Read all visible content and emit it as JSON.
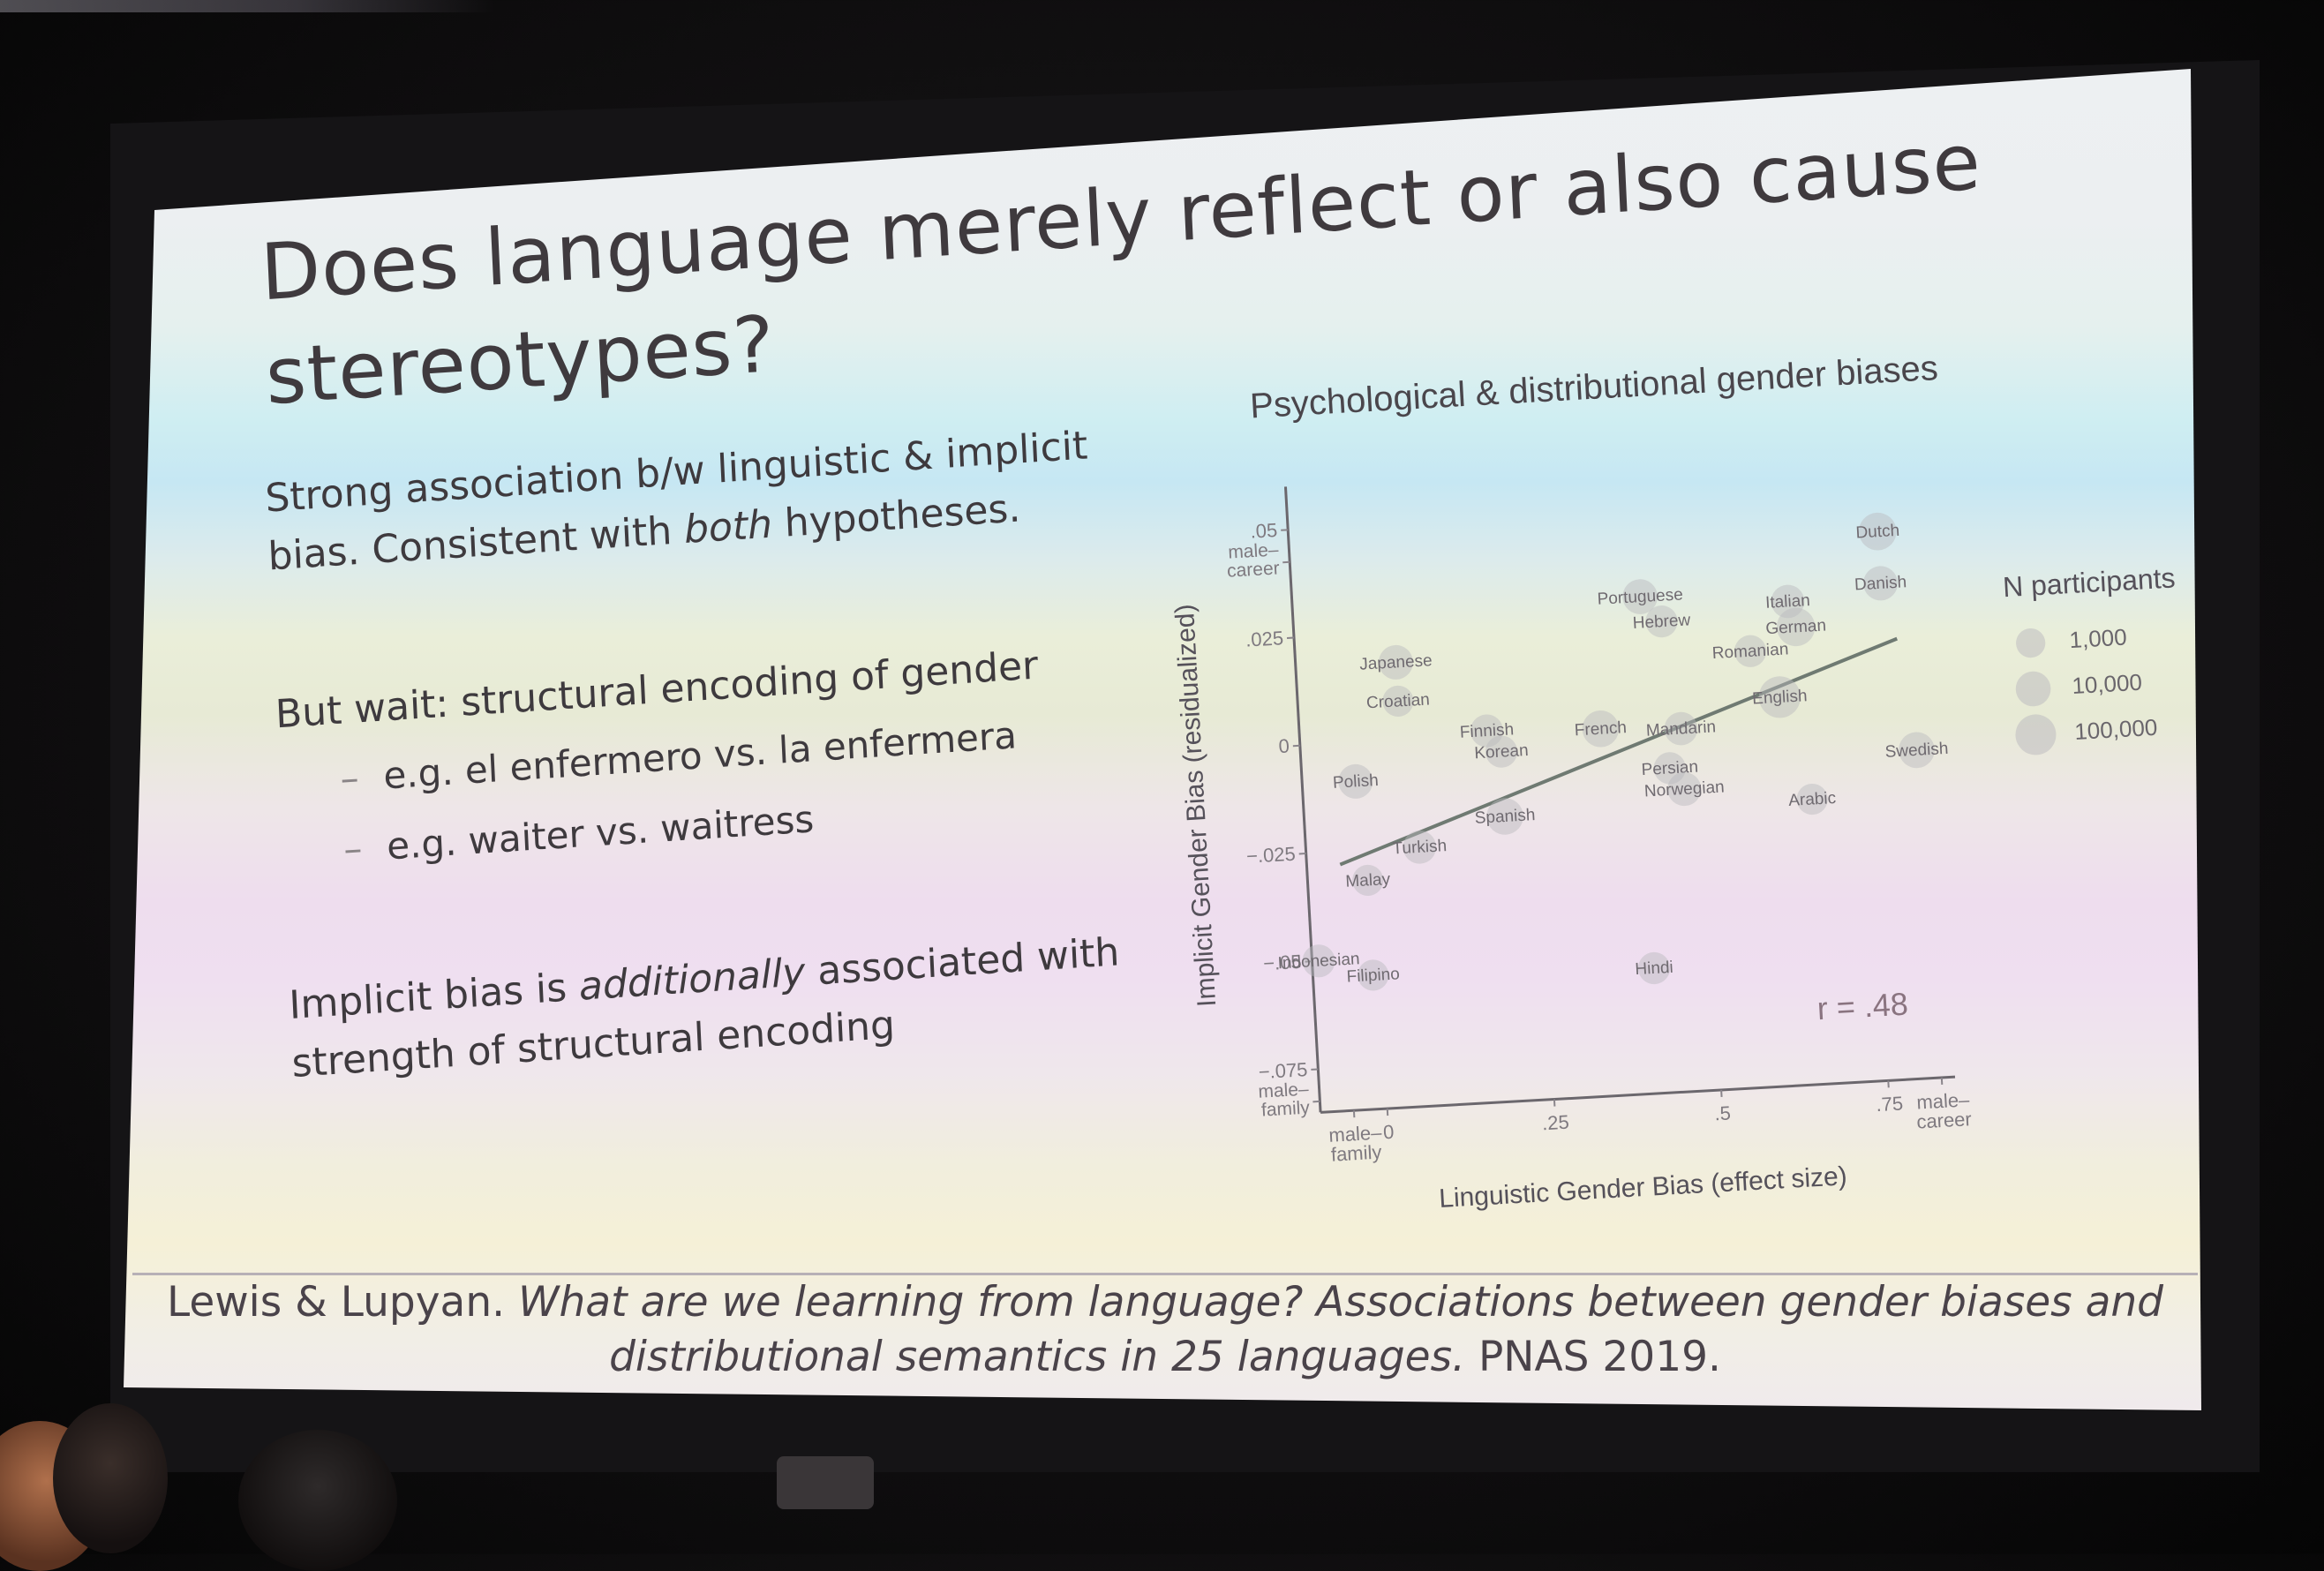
{
  "slide": {
    "title_line1": "Does language merely reflect or also cause",
    "title_line2": "stereotypes?",
    "bullet1_line1": "Strong association b/w linguistic & implicit",
    "bullet1_line2_pre": "bias. Consistent with ",
    "bullet1_line2_em": "both",
    "bullet1_line2_post": " hypotheses.",
    "bullet2": "But wait: structural encoding of gender",
    "sub1": "e.g. el enfermero vs. la enfermera",
    "sub2": "e.g. waiter vs. waitress",
    "bullet3_line1_pre": "Implicit bias is ",
    "bullet3_line1_em": "additionally",
    "bullet3_line1_post": " associated with",
    "bullet3_line2": "strength of structural encoding",
    "dash": "–"
  },
  "citation": {
    "authors": "Lewis & Lupyan.",
    "title_line1": " What are we learning from language? Associations between gender biases and",
    "title_line2": "distributional semantics in 25 languages.",
    "venue": " PNAS 2019."
  },
  "chart_data": {
    "type": "scatter",
    "title": "Psychological & distributional gender biases",
    "xlabel": "Linguistic Gender Bias (effect size)",
    "ylabel": "Implicit  Gender Bias (residualized)",
    "xlim": [
      -0.1,
      0.85
    ],
    "ylim": [
      -0.085,
      0.06
    ],
    "xticks": [
      {
        "v": -0.05,
        "label": "male–\nfamily"
      },
      {
        "v": 0,
        "label": "0"
      },
      {
        "v": 0.25,
        "label": ".25"
      },
      {
        "v": 0.5,
        "label": ".5"
      },
      {
        "v": 0.75,
        "label": ".75"
      },
      {
        "v": 0.83,
        "label": "male–\ncareer"
      }
    ],
    "yticks": [
      {
        "v": 0.05,
        "label": ".05"
      },
      {
        "v": 0.025,
        "label": ".025"
      },
      {
        "v": 0,
        "label": "0"
      },
      {
        "v": -0.025,
        "label": "−.025"
      },
      {
        "v": -0.05,
        "label": "−.05"
      },
      {
        "v": -0.075,
        "label": "−.075"
      }
    ],
    "ytick_extra": [
      {
        "v": 0.045,
        "label": "male–\ncareer"
      },
      {
        "v": -0.08,
        "label": "male–\nfamily"
      }
    ],
    "annotation": "r = .48",
    "legend": {
      "title": "N participants",
      "placement": "right",
      "entries": [
        {
          "label": "1,000",
          "n": 1000
        },
        {
          "label": "10,000",
          "n": 10000
        },
        {
          "label": "100,000",
          "n": 100000
        }
      ]
    },
    "fit_line": {
      "x": [
        -0.05,
        0.8
      ],
      "y": [
        -0.028,
        0.017
      ]
    },
    "points": [
      {
        "label": "Dutch",
        "x": 0.78,
        "y": 0.042,
        "n": 30000
      },
      {
        "label": "Danish",
        "x": 0.78,
        "y": 0.03,
        "n": 8000
      },
      {
        "label": "Portuguese",
        "x": 0.42,
        "y": 0.03,
        "n": 10000
      },
      {
        "label": "Italian",
        "x": 0.64,
        "y": 0.027,
        "n": 5000
      },
      {
        "label": "Hebrew",
        "x": 0.45,
        "y": 0.024,
        "n": 3000
      },
      {
        "label": "German",
        "x": 0.65,
        "y": 0.021,
        "n": 40000
      },
      {
        "label": "Japanese",
        "x": 0.05,
        "y": 0.018,
        "n": 8000
      },
      {
        "label": "Romanian",
        "x": 0.58,
        "y": 0.016,
        "n": 3000
      },
      {
        "label": "Croatian",
        "x": 0.05,
        "y": 0.009,
        "n": 2000
      },
      {
        "label": "English",
        "x": 0.62,
        "y": 0.005,
        "n": 150000
      },
      {
        "label": "Finnish",
        "x": 0.18,
        "y": 0.001,
        "n": 4000
      },
      {
        "label": "French",
        "x": 0.35,
        "y": 0.0,
        "n": 20000
      },
      {
        "label": "Mandarin",
        "x": 0.47,
        "y": -0.001,
        "n": 5000
      },
      {
        "label": "Korean",
        "x": 0.2,
        "y": -0.004,
        "n": 3000
      },
      {
        "label": "Polish",
        "x": -0.02,
        "y": -0.009,
        "n": 8000
      },
      {
        "label": "Persian",
        "x": 0.45,
        "y": -0.01,
        "n": 3000
      },
      {
        "label": "Swedish",
        "x": 0.82,
        "y": -0.009,
        "n": 15000
      },
      {
        "label": "Norwegian",
        "x": 0.47,
        "y": -0.015,
        "n": 6000
      },
      {
        "label": "Spanish",
        "x": 0.2,
        "y": -0.019,
        "n": 20000
      },
      {
        "label": "Arabic",
        "x": 0.66,
        "y": -0.019,
        "n": 2000
      },
      {
        "label": "Turkish",
        "x": 0.07,
        "y": -0.025,
        "n": 5000
      },
      {
        "label": "Malay",
        "x": -0.01,
        "y": -0.032,
        "n": 2000
      },
      {
        "label": "Indonesian",
        "x": -0.09,
        "y": -0.05,
        "n": 4000
      },
      {
        "label": "Filipino",
        "x": -0.01,
        "y": -0.054,
        "n": 2000
      },
      {
        "label": "Hindi",
        "x": 0.41,
        "y": -0.056,
        "n": 3000
      }
    ]
  }
}
